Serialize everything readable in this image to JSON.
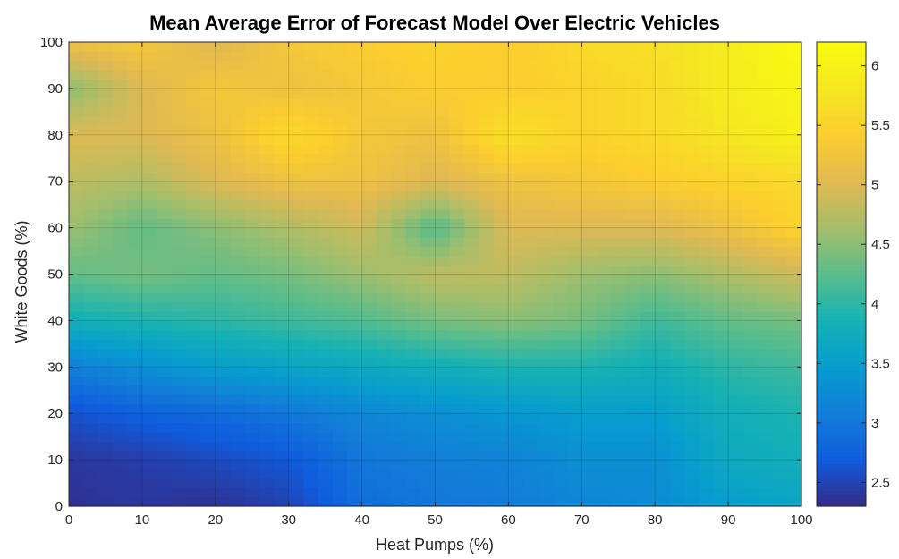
{
  "chart_data": {
    "type": "heatmap",
    "title": "Mean Average Error of Forecast Model Over Electric Vehicles",
    "xlabel": "Heat Pumps (%)",
    "ylabel": "White Goods (%)",
    "xlim": [
      0,
      100
    ],
    "ylim": [
      0,
      100
    ],
    "x": [
      0,
      10,
      20,
      30,
      40,
      50,
      60,
      70,
      80,
      90,
      100
    ],
    "y": [
      0,
      10,
      20,
      30,
      40,
      50,
      60,
      70,
      80,
      90,
      100
    ],
    "x_ticks": [
      "0",
      "10",
      "20",
      "30",
      "40",
      "50",
      "60",
      "70",
      "80",
      "90",
      "100"
    ],
    "y_ticks": [
      "0",
      "10",
      "20",
      "30",
      "40",
      "50",
      "60",
      "70",
      "80",
      "90",
      "100"
    ],
    "z": [
      [
        2.35,
        2.4,
        2.35,
        2.5,
        2.9,
        3.0,
        3.05,
        3.2,
        3.25,
        3.5,
        3.6
      ],
      [
        2.4,
        2.45,
        2.55,
        2.65,
        3.0,
        3.1,
        3.15,
        3.3,
        3.3,
        3.7,
        3.8
      ],
      [
        2.6,
        2.75,
        2.85,
        3.0,
        3.2,
        3.3,
        3.4,
        3.5,
        3.5,
        3.8,
        3.9
      ],
      [
        3.1,
        3.3,
        3.5,
        3.6,
        3.7,
        3.8,
        3.9,
        3.9,
        3.8,
        4.0,
        4.1
      ],
      [
        3.8,
        3.9,
        4.0,
        4.1,
        4.2,
        4.4,
        4.5,
        4.4,
        4.1,
        4.3,
        4.4
      ],
      [
        4.3,
        4.4,
        4.3,
        4.4,
        4.6,
        4.8,
        4.8,
        4.6,
        4.5,
        4.7,
        4.9
      ],
      [
        4.6,
        4.3,
        4.5,
        4.7,
        4.9,
        4.2,
        5.0,
        5.0,
        5.0,
        5.2,
        5.5
      ],
      [
        4.8,
        4.7,
        5.0,
        5.2,
        5.2,
        5.0,
        5.2,
        5.3,
        5.4,
        5.5,
        5.6
      ],
      [
        5.0,
        5.0,
        5.2,
        5.6,
        5.3,
        5.2,
        5.7,
        5.5,
        5.6,
        5.8,
        6.0
      ],
      [
        4.5,
        5.0,
        5.3,
        5.2,
        5.3,
        5.4,
        5.4,
        5.5,
        5.6,
        5.9,
        6.1
      ],
      [
        5.2,
        5.3,
        5.0,
        5.3,
        5.4,
        5.5,
        5.4,
        5.6,
        5.7,
        5.9,
        6.2
      ]
    ],
    "colorbar": {
      "ticks": [
        2.5,
        3,
        3.5,
        4,
        4.5,
        5,
        5.5,
        6
      ],
      "tick_labels": [
        "2.5",
        "3",
        "3.5",
        "4",
        "4.5",
        "5",
        "5.5",
        "6"
      ],
      "range": [
        2.3,
        6.2
      ],
      "colormap": "parula"
    },
    "grid": true
  }
}
